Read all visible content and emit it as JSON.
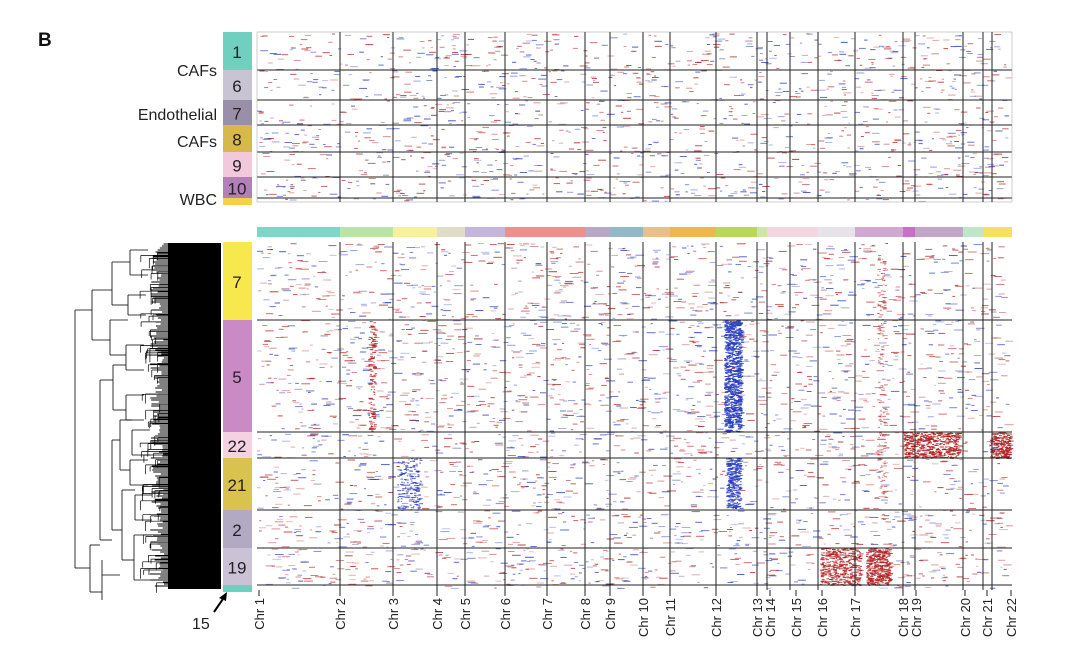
{
  "panel_label": "B",
  "top_cluster_labels": [
    "1",
    "6",
    "7",
    "8",
    "9",
    "10"
  ],
  "top_cluster_colors": [
    "#6fd0c0",
    "#c8c4d4",
    "#9a8fa8",
    "#d6b94a",
    "#f2c8dc",
    "#b27fb8",
    "#f3d24a"
  ],
  "top_group_labels": [
    "CAFs",
    "Endothelial",
    "CAFs",
    "WBC"
  ],
  "bottom_cluster_labels": [
    "7",
    "5",
    "22",
    "21",
    "2",
    "19"
  ],
  "bottom_cluster_colors": [
    "#f7e84e",
    "#c98ac6",
    "#f4d2e2",
    "#d9c24e",
    "#b2a9c3",
    "#cbc2d6",
    "#6fd0c0"
  ],
  "arrow_label": "15",
  "chromosome_labels": [
    "Chr 1",
    "Chr 2",
    "Chr 3",
    "Chr 4",
    "Chr 5",
    "Chr 6",
    "Chr 7",
    "Chr 8",
    "Chr 9",
    "Chr 10",
    "Chr 11",
    "Chr 12",
    "Chr 13",
    "Chr 14",
    "Chr 15",
    "Chr 16",
    "Chr 17",
    "Chr 18",
    "Chr 19",
    "Chr 20",
    "Chr 21",
    "Chr 22"
  ],
  "chromosome_bar_colors": [
    "#7dd6c8",
    "#b9e6a6",
    "#f7f29a",
    "#e0dcc8",
    "#c4b6da",
    "#ef8f8c",
    "#ef8f8c",
    "#b7a8c6",
    "#93b8c6",
    "#e9c08a",
    "#f0b64e",
    "#b8d85a",
    "#cfe7a4",
    "#f4d6e0",
    "#f4d6e0",
    "#e5e2ea",
    "#d0a8d0",
    "#c870c8",
    "#c2a6c8",
    "#bfe6c8",
    "#f6e060",
    "#f6e060"
  ],
  "heatmap_colors": {
    "gain": "#b22222",
    "loss": "#2a3fbf",
    "background": "#ffffff"
  }
}
